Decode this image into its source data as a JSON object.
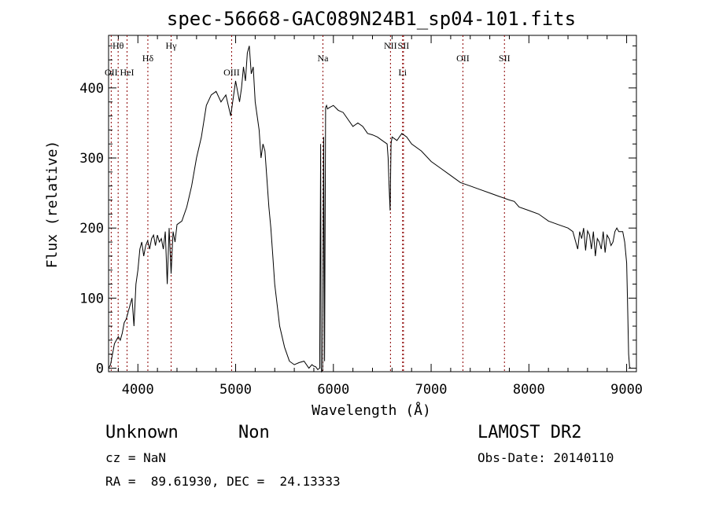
{
  "chart_data": {
    "type": "line",
    "title": "spec-56668-GAC089N24B1_sp04-101.fits",
    "xlabel": "Wavelength (Å)",
    "ylabel": "Flux (relative)",
    "xlim": [
      3700,
      9100
    ],
    "ylim": [
      -5,
      475
    ],
    "x_ticks": [
      4000,
      5000,
      6000,
      7000,
      8000,
      9000
    ],
    "y_ticks": [
      0,
      100,
      200,
      300,
      400
    ],
    "grid": false,
    "line_color": "#000000",
    "marker_color": "#8b0000",
    "line_markers": [
      {
        "label": "Hθ",
        "x": 3798,
        "row": "top"
      },
      {
        "label": "OII",
        "x": 3727,
        "row": "mid"
      },
      {
        "label": "HeI",
        "x": 3889,
        "row": "mid"
      },
      {
        "label": "Hδ",
        "x": 4102,
        "row": "second"
      },
      {
        "label": "Hγ",
        "x": 4340,
        "row": "top"
      },
      {
        "label": "OIII",
        "x": 4959,
        "row": "mid"
      },
      {
        "label": "Na",
        "x": 5893,
        "row": "second"
      },
      {
        "label": "NII",
        "x": 6584,
        "row": "top"
      },
      {
        "label": "SII",
        "x": 6717,
        "row": "top"
      },
      {
        "label": "Li",
        "x": 6708,
        "row": "mid"
      },
      {
        "label": "OII",
        "x": 7325,
        "row": "second"
      },
      {
        "label": "SII",
        "x": 7750,
        "row": "second"
      }
    ],
    "series": [
      {
        "x": [
          3700,
          3720,
          3740,
          3760,
          3780,
          3800,
          3820,
          3840,
          3860,
          3880,
          3900,
          3920,
          3940,
          3960,
          3980,
          4000,
          4020,
          4040,
          4060,
          4080,
          4100,
          4120,
          4140,
          4160,
          4180,
          4200,
          4220,
          4240,
          4260,
          4280,
          4300,
          4320,
          4340,
          4360,
          4380,
          4400,
          4450,
          4500,
          4550,
          4600,
          4650,
          4700,
          4750,
          4800,
          4850,
          4900,
          4950,
          5000,
          5020,
          5040,
          5060,
          5080,
          5100,
          5120,
          5140,
          5160,
          5180,
          5200,
          5220,
          5240,
          5260,
          5280,
          5300,
          5320,
          5340,
          5360,
          5380,
          5400,
          5450,
          5500,
          5550,
          5600,
          5650,
          5700,
          5750,
          5780,
          5800,
          5820,
          5840,
          5860,
          5870,
          5875,
          5880,
          5890,
          5900,
          5910,
          5920,
          5930,
          5940,
          5960,
          6000,
          6050,
          6100,
          6150,
          6200,
          6250,
          6300,
          6350,
          6400,
          6450,
          6500,
          6550,
          6560,
          6570,
          6580,
          6590,
          6600,
          6650,
          6700,
          6750,
          6800,
          6900,
          7000,
          7100,
          7200,
          7300,
          7400,
          7500,
          7600,
          7700,
          7800,
          7850,
          7900,
          8000,
          8100,
          8200,
          8300,
          8400,
          8450,
          8500,
          8520,
          8540,
          8560,
          8580,
          8600,
          8620,
          8640,
          8660,
          8680,
          8700,
          8720,
          8740,
          8760,
          8780,
          8800,
          8820,
          8840,
          8860,
          8880,
          8900,
          8920,
          8940,
          8960,
          8980,
          9000,
          9010,
          9020,
          9030,
          9040
        ],
        "y": [
          0,
          5,
          20,
          35,
          40,
          45,
          40,
          50,
          65,
          70,
          80,
          90,
          100,
          60,
          120,
          140,
          170,
          180,
          160,
          175,
          182,
          170,
          185,
          190,
          175,
          190,
          180,
          185,
          170,
          195,
          120,
          200,
          135,
          195,
          180,
          205,
          210,
          230,
          260,
          300,
          330,
          375,
          390,
          395,
          380,
          390,
          360,
          410,
          395,
          380,
          400,
          430,
          410,
          450,
          460,
          420,
          430,
          380,
          360,
          340,
          300,
          320,
          310,
          270,
          230,
          200,
          160,
          120,
          60,
          30,
          10,
          5,
          8,
          10,
          0,
          5,
          3,
          2,
          -2,
          0,
          320,
          0,
          -5,
          -3,
          330,
          10,
          372,
          375,
          370,
          372,
          375,
          368,
          365,
          355,
          345,
          350,
          345,
          335,
          333,
          330,
          325,
          320,
          300,
          260,
          225,
          320,
          330,
          325,
          335,
          330,
          320,
          310,
          295,
          285,
          275,
          265,
          260,
          255,
          250,
          245,
          240,
          238,
          230,
          225,
          220,
          210,
          205,
          200,
          195,
          170,
          195,
          185,
          200,
          168,
          196,
          190,
          170,
          195,
          160,
          185,
          180,
          170,
          195,
          165,
          190,
          185,
          175,
          180,
          195,
          200,
          195,
          195,
          195,
          180,
          150,
          90,
          20,
          2,
          0
        ]
      }
    ]
  },
  "footer": {
    "left_line1_a": "Unknown",
    "left_line1_b": "Non",
    "left_line2": "cz = NaN",
    "left_line3": "RA =  89.61930, DEC =  24.13333",
    "right_line1": "LAMOST DR2",
    "right_line2": "Obs-Date: 20140110"
  }
}
